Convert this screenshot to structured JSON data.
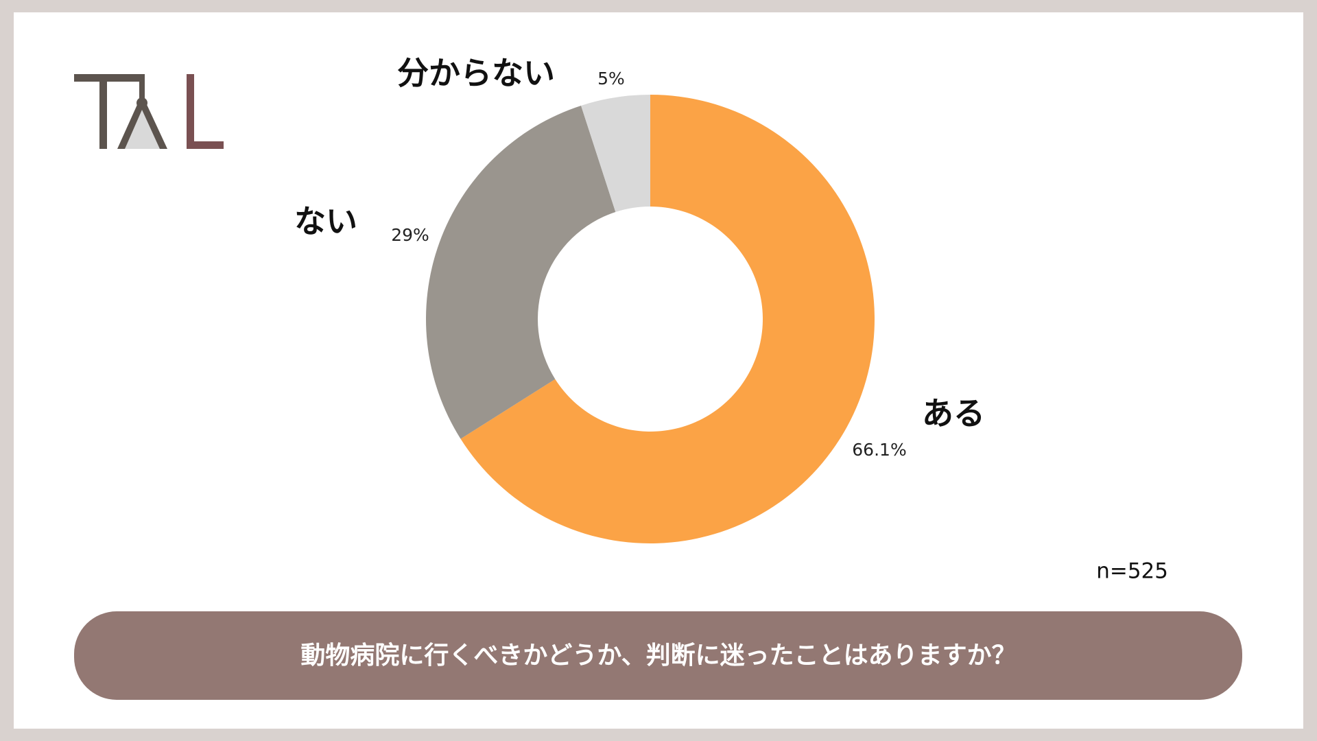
{
  "chart_data": {
    "type": "donut",
    "title": "動物病院に行くべきかどうか、判断に迷ったことはありますか？",
    "categories": [
      "ある",
      "ない",
      "分からない"
    ],
    "values": [
      66.1,
      29,
      5
    ],
    "value_labels": [
      "66.1%",
      "29%",
      "5%"
    ],
    "colors": [
      "#fba346",
      "#9a958e",
      "#d9d9d9"
    ],
    "note": "n=525"
  }
}
